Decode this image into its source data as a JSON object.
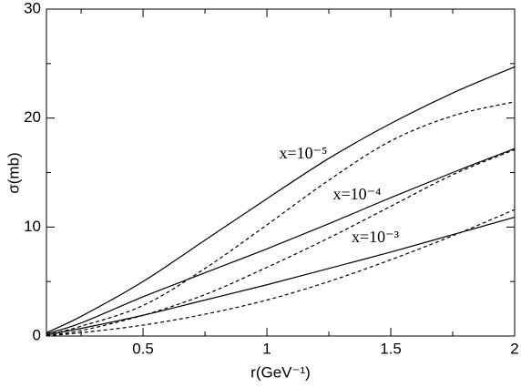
{
  "chart_data": {
    "type": "line",
    "xlabel": "r(GeV⁻¹)",
    "ylabel": "σ(mb)",
    "x": [
      0.11,
      0.25,
      0.5,
      0.75,
      1.0,
      1.25,
      1.5,
      1.75,
      2.0
    ],
    "series": [
      {
        "color": "#000000",
        "style": "solid",
        "values": [
          0.3,
          1.8,
          5.0,
          8.8,
          12.6,
          16.3,
          19.5,
          22.3,
          24.7
        ]
      },
      {
        "color": "#000000",
        "style": "dashed",
        "values": [
          0.1,
          0.9,
          2.8,
          6.2,
          10.2,
          14.3,
          17.9,
          20.2,
          21.5
        ]
      },
      {
        "color": "#000000",
        "style": "solid",
        "values": [
          0.2,
          1.2,
          3.6,
          5.8,
          8.0,
          10.3,
          12.7,
          15.0,
          17.2
        ]
      },
      {
        "color": "#000000",
        "style": "dashed",
        "values": [
          0.05,
          0.5,
          1.9,
          3.8,
          6.3,
          9.0,
          11.9,
          14.8,
          17.1
        ]
      },
      {
        "color": "#000000",
        "style": "solid",
        "values": [
          0.1,
          0.7,
          1.9,
          3.3,
          4.7,
          6.2,
          7.7,
          9.3,
          10.9
        ]
      },
      {
        "color": "#000000",
        "style": "dashed",
        "values": [
          0.02,
          0.3,
          1.0,
          2.0,
          3.3,
          5.0,
          7.0,
          9.2,
          11.6
        ]
      }
    ],
    "annotations": [
      "x=10⁻⁵",
      "x=10⁻⁴",
      "x=10⁻³"
    ],
    "xlim": [
      0.11,
      2
    ],
    "ylim": [
      0,
      30
    ],
    "xticks": [
      0.5,
      1,
      1.5,
      2
    ],
    "yticks": [
      0,
      10,
      20,
      30
    ],
    "xminorticks": [
      0.25,
      0.75,
      1.25,
      1.75
    ],
    "yminorticks": [
      5,
      15,
      25
    ],
    "grid": false
  }
}
